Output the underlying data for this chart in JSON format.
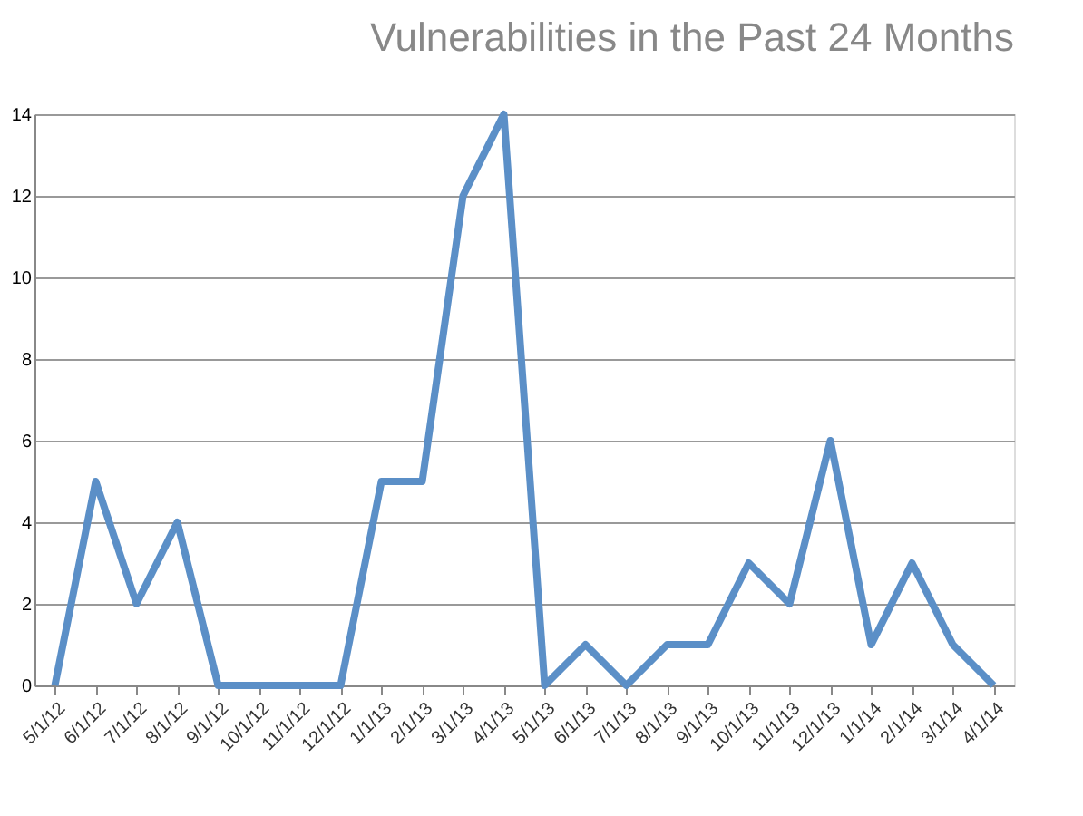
{
  "chart_data": {
    "type": "line",
    "title": "Vulnerabilities in the Past 24 Months",
    "categories": [
      "5/1/12",
      "6/1/12",
      "7/1/12",
      "8/1/12",
      "9/1/12",
      "10/1/12",
      "11/1/12",
      "12/1/12",
      "1/1/13",
      "2/1/13",
      "3/1/13",
      "4/1/13",
      "5/1/13",
      "6/1/13",
      "7/1/13",
      "8/1/13",
      "9/1/13",
      "10/1/13",
      "11/1/13",
      "12/1/13",
      "1/1/14",
      "2/1/14",
      "3/1/14",
      "4/1/14"
    ],
    "series": [
      {
        "color": "#5b8fc7",
        "values": [
          0,
          5,
          2,
          4,
          0,
          0,
          0,
          0,
          5,
          5,
          12,
          14,
          0,
          1,
          0,
          1,
          1,
          3,
          2,
          6,
          1,
          3,
          1,
          0
        ]
      }
    ],
    "ylim": [
      0,
      14
    ],
    "yticks": [
      0,
      2,
      4,
      6,
      8,
      10,
      12,
      14
    ],
    "grid": "y",
    "marker": "none",
    "line_style": "solid"
  }
}
